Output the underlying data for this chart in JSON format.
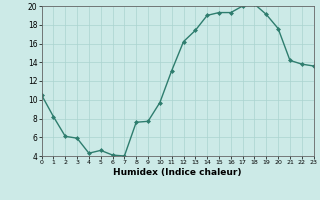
{
  "x": [
    0,
    1,
    2,
    3,
    4,
    5,
    6,
    7,
    8,
    9,
    10,
    11,
    12,
    13,
    14,
    15,
    16,
    17,
    18,
    19,
    20,
    21,
    22,
    23
  ],
  "y": [
    10.5,
    8.2,
    6.1,
    5.9,
    4.3,
    4.6,
    4.1,
    4.0,
    7.6,
    7.7,
    9.7,
    13.1,
    16.2,
    17.4,
    19.0,
    19.3,
    19.3,
    20.0,
    20.2,
    19.1,
    17.6,
    14.2,
    13.8,
    13.6
  ],
  "line_color": "#2e7d6e",
  "marker_color": "#2e7d6e",
  "bg_color": "#cceae7",
  "grid_color": "#aad4d0",
  "xlabel": "Humidex (Indice chaleur)",
  "ylim": [
    4,
    20
  ],
  "xlim": [
    0,
    23
  ],
  "yticks": [
    4,
    6,
    8,
    10,
    12,
    14,
    16,
    18,
    20
  ],
  "xticks": [
    0,
    1,
    2,
    3,
    4,
    5,
    6,
    7,
    8,
    9,
    10,
    11,
    12,
    13,
    14,
    15,
    16,
    17,
    18,
    19,
    20,
    21,
    22,
    23
  ]
}
